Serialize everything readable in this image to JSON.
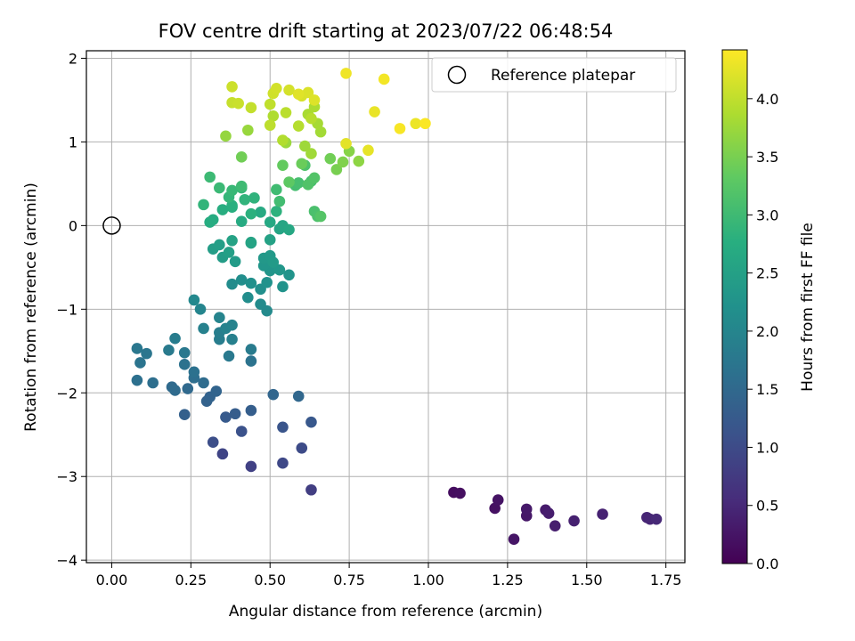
{
  "chart_data": {
    "type": "scatter",
    "title": "FOV centre drift starting at 2023/07/22 06:48:54",
    "xlabel": "Angular distance from reference (arcmin)",
    "ylabel": "Rotation from reference (arcmin)",
    "xlim": [
      -0.08,
      1.81
    ],
    "ylim": [
      -4.03,
      2.09
    ],
    "xticks": [
      0.0,
      0.25,
      0.5,
      0.75,
      1.0,
      1.25,
      1.5,
      1.75
    ],
    "xtick_labels": [
      "0.00",
      "0.25",
      "0.50",
      "0.75",
      "1.00",
      "1.25",
      "1.50",
      "1.75"
    ],
    "yticks": [
      -4,
      -3,
      -2,
      -1,
      0,
      1,
      2
    ],
    "ytick_labels": [
      "−4",
      "−3",
      "−2",
      "−1",
      "0",
      "1",
      "2"
    ],
    "grid": true,
    "legend": {
      "label": "Reference platepar",
      "location": "top-right"
    },
    "reference_point": {
      "x": 0.0,
      "y": 0.0
    },
    "colorbar": {
      "label": "Hours from first FF file",
      "colormap": "viridis",
      "range": [
        0.0,
        4.42
      ],
      "ticks": [
        0.0,
        0.5,
        1.0,
        1.5,
        2.0,
        2.5,
        3.0,
        3.5,
        4.0
      ],
      "tick_labels": [
        "0.0",
        "0.5",
        "1.0",
        "1.5",
        "2.0",
        "2.5",
        "3.0",
        "3.5",
        "4.0"
      ]
    },
    "points": [
      [
        1.08,
        -3.19,
        0.15
      ],
      [
        1.1,
        -3.2,
        0.17
      ],
      [
        1.21,
        -3.38,
        0.2
      ],
      [
        1.22,
        -3.28,
        0.22
      ],
      [
        1.27,
        -3.75,
        0.25
      ],
      [
        1.31,
        -3.47,
        0.28
      ],
      [
        1.31,
        -3.39,
        0.3
      ],
      [
        1.37,
        -3.4,
        0.32
      ],
      [
        1.38,
        -3.44,
        0.35
      ],
      [
        1.4,
        -3.59,
        0.37
      ],
      [
        1.46,
        -3.53,
        0.4
      ],
      [
        1.55,
        -3.45,
        0.42
      ],
      [
        1.69,
        -3.49,
        0.45
      ],
      [
        1.7,
        -3.51,
        0.47
      ],
      [
        1.72,
        -3.51,
        0.5
      ],
      [
        0.63,
        -3.16,
        0.8
      ],
      [
        0.44,
        -2.88,
        0.85
      ],
      [
        0.35,
        -2.73,
        0.9
      ],
      [
        0.54,
        -2.84,
        0.95
      ],
      [
        0.6,
        -2.66,
        1.0
      ],
      [
        0.32,
        -2.59,
        1.05
      ],
      [
        0.41,
        -2.46,
        1.1
      ],
      [
        0.54,
        -2.41,
        1.15
      ],
      [
        0.63,
        -2.35,
        1.2
      ],
      [
        0.36,
        -2.29,
        1.25
      ],
      [
        0.39,
        -2.25,
        1.3
      ],
      [
        0.44,
        -2.21,
        1.32
      ],
      [
        0.23,
        -2.26,
        1.35
      ],
      [
        0.3,
        -2.1,
        1.38
      ],
      [
        0.31,
        -2.05,
        1.4
      ],
      [
        0.33,
        -1.98,
        1.42
      ],
      [
        0.51,
        -2.02,
        1.45
      ],
      [
        0.59,
        -2.04,
        1.47
      ],
      [
        0.24,
        -1.95,
        1.5
      ],
      [
        0.19,
        -1.93,
        1.52
      ],
      [
        0.2,
        -1.97,
        1.54
      ],
      [
        0.29,
        -1.88,
        1.56
      ],
      [
        0.26,
        -1.82,
        1.58
      ],
      [
        0.13,
        -1.88,
        1.6
      ],
      [
        0.08,
        -1.85,
        1.62
      ],
      [
        0.26,
        -1.75,
        1.64
      ],
      [
        0.23,
        -1.66,
        1.66
      ],
      [
        0.44,
        -1.62,
        1.68
      ],
      [
        0.09,
        -1.64,
        1.7
      ],
      [
        0.11,
        -1.53,
        1.72
      ],
      [
        0.08,
        -1.47,
        1.74
      ],
      [
        0.23,
        -1.52,
        1.76
      ],
      [
        0.37,
        -1.56,
        1.78
      ],
      [
        0.18,
        -1.49,
        1.8
      ],
      [
        0.44,
        -1.48,
        1.82
      ],
      [
        0.2,
        -1.35,
        1.84
      ],
      [
        0.34,
        -1.36,
        1.86
      ],
      [
        0.34,
        -1.28,
        1.88
      ],
      [
        0.38,
        -1.36,
        1.9
      ],
      [
        0.29,
        -1.23,
        1.92
      ],
      [
        0.36,
        -1.23,
        1.94
      ],
      [
        0.38,
        -1.19,
        1.96
      ],
      [
        0.34,
        -1.1,
        1.98
      ],
      [
        0.28,
        -1.0,
        2.0
      ],
      [
        0.26,
        -0.89,
        2.05
      ],
      [
        0.49,
        -1.02,
        2.08
      ],
      [
        0.47,
        -0.94,
        2.1
      ],
      [
        0.38,
        -0.7,
        2.12
      ],
      [
        0.43,
        -0.86,
        2.14
      ],
      [
        0.41,
        -0.65,
        2.16
      ],
      [
        0.47,
        -0.76,
        2.18
      ],
      [
        0.44,
        -0.69,
        2.2
      ],
      [
        0.49,
        -0.68,
        2.22
      ],
      [
        0.54,
        -0.73,
        2.24
      ],
      [
        0.56,
        -0.59,
        2.26
      ],
      [
        0.5,
        -0.54,
        2.28
      ],
      [
        0.48,
        -0.48,
        2.3
      ],
      [
        0.53,
        -0.53,
        2.32
      ],
      [
        0.48,
        -0.39,
        2.34
      ],
      [
        0.5,
        -0.36,
        2.36
      ],
      [
        0.51,
        -0.44,
        2.38
      ],
      [
        0.39,
        -0.43,
        2.4
      ],
      [
        0.35,
        -0.38,
        2.42
      ],
      [
        0.32,
        -0.28,
        2.44
      ],
      [
        0.34,
        -0.23,
        2.46
      ],
      [
        0.37,
        -0.32,
        2.48
      ],
      [
        0.44,
        -0.21,
        2.5
      ],
      [
        0.5,
        -0.17,
        2.52
      ],
      [
        0.38,
        -0.18,
        2.54
      ],
      [
        0.44,
        -0.2,
        2.56
      ],
      [
        0.53,
        -0.04,
        2.58
      ],
      [
        0.54,
        0.0,
        2.6
      ],
      [
        0.56,
        -0.05,
        2.62
      ],
      [
        0.5,
        0.04,
        2.64
      ],
      [
        0.47,
        0.16,
        2.66
      ],
      [
        0.41,
        0.05,
        2.68
      ],
      [
        0.32,
        0.07,
        2.7
      ],
      [
        0.31,
        0.04,
        2.72
      ],
      [
        0.35,
        0.19,
        2.74
      ],
      [
        0.38,
        0.22,
        2.76
      ],
      [
        0.38,
        0.24,
        2.78
      ],
      [
        0.44,
        0.14,
        2.8
      ],
      [
        0.52,
        0.17,
        2.82
      ],
      [
        0.45,
        0.33,
        2.84
      ],
      [
        0.42,
        0.31,
        2.86
      ],
      [
        0.29,
        0.25,
        2.88
      ],
      [
        0.37,
        0.34,
        2.9
      ],
      [
        0.41,
        0.45,
        2.92
      ],
      [
        0.38,
        0.42,
        2.94
      ],
      [
        0.34,
        0.45,
        2.96
      ],
      [
        0.31,
        0.58,
        2.98
      ],
      [
        0.41,
        0.47,
        3.0
      ],
      [
        0.52,
        0.43,
        3.02
      ],
      [
        0.53,
        0.29,
        3.04
      ],
      [
        0.58,
        0.48,
        3.06
      ],
      [
        0.59,
        0.51,
        3.08
      ],
      [
        0.63,
        0.53,
        3.1
      ],
      [
        0.64,
        0.17,
        3.12
      ],
      [
        0.65,
        0.11,
        3.14
      ],
      [
        0.61,
        0.72,
        3.16
      ],
      [
        0.62,
        0.49,
        3.18
      ],
      [
        0.64,
        0.57,
        3.2
      ],
      [
        0.66,
        0.11,
        3.22
      ],
      [
        0.56,
        0.52,
        3.3
      ],
      [
        0.54,
        0.72,
        3.35
      ],
      [
        0.6,
        0.74,
        3.4
      ],
      [
        0.69,
        0.8,
        3.45
      ],
      [
        0.71,
        0.67,
        3.5
      ],
      [
        0.73,
        0.76,
        3.55
      ],
      [
        0.75,
        0.89,
        3.6
      ],
      [
        0.78,
        0.77,
        3.65
      ],
      [
        0.41,
        0.82,
        3.45
      ],
      [
        0.36,
        1.07,
        3.7
      ],
      [
        0.43,
        1.14,
        3.72
      ],
      [
        0.55,
        0.99,
        3.74
      ],
      [
        0.61,
        0.95,
        3.76
      ],
      [
        0.63,
        0.86,
        3.78
      ],
      [
        0.66,
        1.12,
        3.8
      ],
      [
        0.65,
        1.22,
        3.82
      ],
      [
        0.62,
        1.33,
        3.84
      ],
      [
        0.64,
        1.42,
        3.86
      ],
      [
        0.51,
        1.31,
        3.88
      ],
      [
        0.54,
        1.02,
        3.9
      ],
      [
        0.59,
        1.19,
        3.92
      ],
      [
        0.63,
        1.28,
        3.94
      ],
      [
        0.55,
        1.35,
        3.96
      ],
      [
        0.5,
        1.2,
        3.98
      ],
      [
        0.5,
        1.45,
        4.0
      ],
      [
        0.44,
        1.41,
        4.02
      ],
      [
        0.38,
        1.47,
        4.04
      ],
      [
        0.4,
        1.46,
        4.06
      ],
      [
        0.38,
        1.66,
        4.08
      ],
      [
        0.51,
        1.58,
        4.1
      ],
      [
        0.52,
        1.64,
        4.12
      ],
      [
        0.56,
        1.62,
        4.14
      ],
      [
        0.6,
        1.55,
        4.16
      ],
      [
        0.62,
        1.59,
        4.18
      ],
      [
        0.64,
        1.5,
        4.2
      ],
      [
        0.59,
        1.57,
        4.22
      ],
      [
        0.74,
        0.98,
        4.24
      ],
      [
        0.81,
        0.9,
        4.26
      ],
      [
        0.83,
        1.36,
        4.28
      ],
      [
        0.96,
        1.22,
        4.3
      ],
      [
        0.74,
        1.82,
        4.32
      ],
      [
        0.86,
        1.75,
        4.35
      ],
      [
        0.91,
        1.16,
        4.38
      ],
      [
        0.99,
        1.22,
        4.4
      ]
    ]
  }
}
